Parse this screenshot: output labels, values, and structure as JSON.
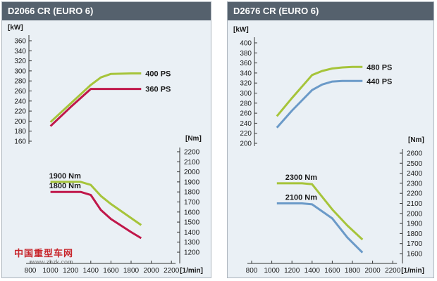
{
  "watermark": {
    "brand": "中国重型车网",
    "url": "www.zhzk.com"
  },
  "chart_data": [
    {
      "type": "line",
      "title": "D2066 CR (EURO 6)",
      "x_unit": "[1/min]",
      "x_ticks": [
        800,
        1000,
        1200,
        1400,
        1600,
        1800,
        2000,
        2200
      ],
      "power_unit": "[kW]",
      "power_ticks": [
        160,
        180,
        200,
        220,
        240,
        260,
        280,
        300,
        320,
        340,
        360
      ],
      "torque_unit": "[Nm]",
      "torque_ticks": [
        1200,
        1300,
        1400,
        1500,
        1600,
        1700,
        1800,
        1900,
        2000,
        2100,
        2200
      ],
      "power_series": [
        {
          "name": "400 PS",
          "color": "#a6c43a",
          "x": [
            1000,
            1200,
            1400,
            1500,
            1600,
            1800,
            1900
          ],
          "y": [
            198,
            235,
            272,
            287,
            294,
            295,
            295
          ]
        },
        {
          "name": "360 PS",
          "color": "#c0174a",
          "x": [
            1000,
            1200,
            1400,
            1500,
            1600,
            1800,
            1900
          ],
          "y": [
            190,
            228,
            264,
            264,
            264,
            264,
            264
          ]
        }
      ],
      "torque_series": [
        {
          "name": "1900 Nm",
          "color": "#a6c43a",
          "x": [
            1000,
            1200,
            1300,
            1400,
            1500,
            1600,
            1800,
            1900
          ],
          "y": [
            1900,
            1900,
            1900,
            1870,
            1760,
            1680,
            1540,
            1470
          ]
        },
        {
          "name": "1800 Nm",
          "color": "#c0174a",
          "x": [
            1000,
            1200,
            1300,
            1400,
            1500,
            1600,
            1800,
            1900
          ],
          "y": [
            1800,
            1800,
            1800,
            1770,
            1620,
            1530,
            1400,
            1340
          ]
        }
      ]
    },
    {
      "type": "line",
      "title": "D2676 CR (EURO 6)",
      "x_unit": "[1/min]",
      "x_ticks": [
        800,
        1000,
        1200,
        1400,
        1600,
        1800,
        2000,
        2200
      ],
      "power_unit": "[kW]",
      "power_ticks": [
        200,
        220,
        240,
        260,
        280,
        300,
        320,
        340,
        360,
        380,
        400
      ],
      "torque_unit": "[Nm]",
      "torque_ticks": [
        1600,
        1700,
        1800,
        1900,
        2000,
        2100,
        2200,
        2300,
        2400,
        2500,
        2600
      ],
      "power_series": [
        {
          "name": "480 PS",
          "color": "#a6c43a",
          "x": [
            1050,
            1200,
            1400,
            1500,
            1600,
            1700,
            1800,
            1900
          ],
          "y": [
            254,
            290,
            336,
            344,
            349,
            351,
            352,
            352
          ]
        },
        {
          "name": "440 PS",
          "color": "#6b9ac8",
          "x": [
            1050,
            1200,
            1400,
            1500,
            1600,
            1700,
            1800,
            1900
          ],
          "y": [
            231,
            265,
            306,
            317,
            323,
            324,
            324,
            324
          ]
        }
      ],
      "torque_series": [
        {
          "name": "2300 Nm",
          "color": "#a6c43a",
          "x": [
            1050,
            1200,
            1300,
            1400,
            1600,
            1750,
            1900
          ],
          "y": [
            2300,
            2300,
            2300,
            2290,
            2040,
            1880,
            1740
          ]
        },
        {
          "name": "2100 Nm",
          "color": "#6b9ac8",
          "x": [
            1050,
            1200,
            1300,
            1400,
            1600,
            1750,
            1900
          ],
          "y": [
            2100,
            2100,
            2100,
            2090,
            1950,
            1760,
            1610
          ]
        }
      ]
    }
  ]
}
